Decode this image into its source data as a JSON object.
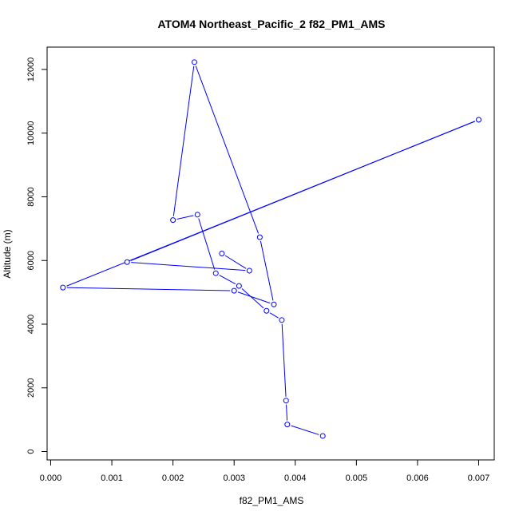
{
  "chart_data": {
    "type": "line",
    "title": "ATOM4 Northeast_Pacific_2 f82_PM1_AMS",
    "xlabel": "f82_PM1_AMS",
    "ylabel": "Altitude (m)",
    "xlim": [
      0.0,
      0.007
    ],
    "ylim": [
      0,
      12000
    ],
    "x_ticks": [
      "0.000",
      "0.001",
      "0.002",
      "0.003",
      "0.004",
      "0.005",
      "0.006",
      "0.007"
    ],
    "y_ticks": [
      "0",
      "2000",
      "4000",
      "6000",
      "8000",
      "10000",
      "12000"
    ],
    "grid": false,
    "legend": "none",
    "series_color": "#0000ff",
    "x": [
      0.00445,
      0.00387,
      0.00385,
      0.00378,
      0.00353,
      0.00308,
      0.0027,
      0.0024,
      0.002,
      0.00235,
      0.00342,
      0.00365,
      0.003,
      0.0002,
      0.007,
      0.00125,
      0.00325,
      0.0028
    ],
    "y": [
      490,
      850,
      1600,
      4130,
      4420,
      5200,
      5600,
      7440,
      7270,
      12230,
      6730,
      4620,
      5050,
      5150,
      10420,
      5950,
      5680,
      6220
    ]
  }
}
